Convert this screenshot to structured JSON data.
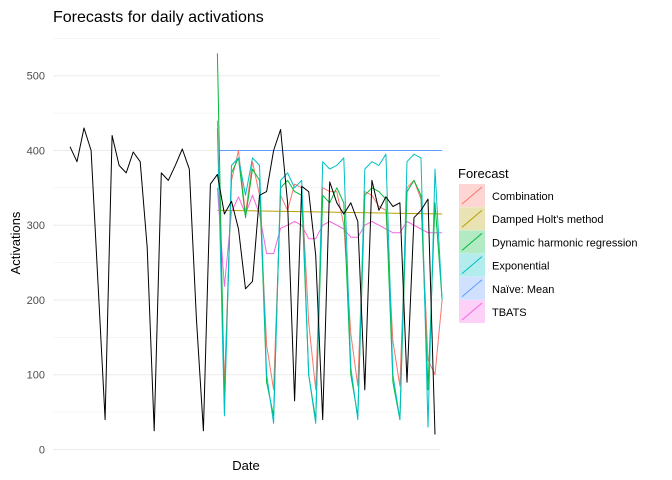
{
  "chart_data": {
    "type": "line",
    "title": "Forecasts for daily activations",
    "xlabel": "Date",
    "ylabel": "Activations",
    "ylim": [
      0,
      550
    ],
    "xlim": [
      1,
      53
    ],
    "yticks": [
      0,
      100,
      200,
      300,
      400,
      500
    ],
    "grid": true,
    "legend_title": "Forecast",
    "legend_position": "right",
    "history": {
      "color": "#000000",
      "x": [
        1,
        2,
        3,
        4,
        5,
        6,
        7,
        8,
        9,
        10,
        11,
        12,
        13,
        14,
        15,
        16,
        17,
        18,
        19,
        20,
        21,
        22,
        23,
        24,
        25,
        26,
        27,
        28,
        29,
        30,
        31,
        32,
        33,
        34,
        35,
        36,
        37,
        38,
        39,
        40,
        41,
        42,
        43,
        44,
        45,
        46,
        47,
        48,
        49,
        50,
        51,
        52,
        53
      ],
      "values": [
        405,
        385,
        430,
        400,
        220,
        40,
        420,
        380,
        370,
        398,
        385,
        270,
        25,
        370,
        360,
        380,
        402,
        375,
        175,
        25,
        355,
        368,
        315,
        332,
        295,
        215,
        225,
        340,
        345,
        400,
        428,
        330,
        65,
        352,
        345,
        260,
        40,
        358,
        330,
        315,
        330,
        305,
        80,
        360,
        320,
        338,
        325,
        330,
        90,
        310,
        320,
        335,
        20
      ]
    },
    "series": [
      {
        "name": "Combination",
        "color": "#F8766D",
        "x": [
          22,
          23,
          24,
          25,
          26,
          27,
          28,
          29,
          30,
          31,
          32,
          33,
          34,
          35,
          36,
          37,
          38,
          39,
          40,
          41,
          42,
          43,
          44,
          45,
          46,
          47,
          48,
          49,
          50,
          51,
          52,
          53,
          54
        ],
        "values": [
          440,
          85,
          360,
          400,
          315,
          385,
          340,
          140,
          80,
          340,
          320,
          355,
          350,
          170,
          80,
          350,
          345,
          345,
          300,
          155,
          85,
          345,
          340,
          325,
          320,
          145,
          85,
          350,
          360,
          335,
          120,
          100,
          200
        ]
      },
      {
        "name": "Damped Holt's method",
        "color": "#B79F00",
        "x": [
          22,
          54
        ],
        "values": [
          320,
          315
        ]
      },
      {
        "name": "Dynamic harmonic regression",
        "color": "#00BA38",
        "x": [
          22,
          23,
          24,
          25,
          26,
          27,
          28,
          29,
          30,
          31,
          32,
          33,
          34,
          35,
          36,
          37,
          38,
          39,
          40,
          41,
          42,
          43,
          44,
          45,
          46,
          47,
          48,
          49,
          50,
          51,
          52,
          53,
          54
        ],
        "values": [
          530,
          60,
          370,
          390,
          310,
          375,
          360,
          90,
          45,
          350,
          360,
          345,
          340,
          100,
          40,
          340,
          330,
          350,
          330,
          100,
          45,
          340,
          350,
          345,
          335,
          90,
          40,
          345,
          360,
          340,
          80,
          330,
          200
        ]
      },
      {
        "name": "Exponential",
        "color": "#00BFC4",
        "x": [
          22,
          23,
          24,
          25,
          26,
          27,
          28,
          29,
          30,
          31,
          32,
          33,
          34,
          35,
          36,
          37,
          38,
          39,
          40,
          41,
          42,
          43,
          44,
          45,
          46,
          47,
          48,
          49,
          50,
          51,
          52,
          53,
          54
        ],
        "values": [
          430,
          45,
          380,
          390,
          340,
          390,
          380,
          100,
          35,
          360,
          370,
          350,
          360,
          100,
          35,
          385,
          375,
          380,
          390,
          110,
          40,
          375,
          385,
          380,
          395,
          100,
          40,
          385,
          395,
          390,
          30,
          375,
          200
        ]
      },
      {
        "name": "Naïve: Mean",
        "color": "#619CFF",
        "x": [
          22,
          54
        ],
        "values": [
          400,
          400
        ]
      },
      {
        "name": "TBATS",
        "color": "#F564E3",
        "x": [
          22,
          23,
          24,
          25,
          26,
          27,
          28,
          29,
          30,
          31,
          32,
          33,
          34,
          35,
          36,
          37,
          38,
          39,
          40,
          41,
          42,
          43,
          44,
          45,
          46,
          47,
          48,
          49,
          50,
          51,
          52,
          53,
          54
        ],
        "values": [
          350,
          218,
          318,
          338,
          315,
          340,
          315,
          262,
          262,
          296,
          300,
          305,
          300,
          282,
          282,
          300,
          305,
          300,
          295,
          284,
          284,
          300,
          305,
          300,
          295,
          290,
          290,
          305,
          300,
          295,
          290,
          290,
          290
        ]
      }
    ]
  }
}
